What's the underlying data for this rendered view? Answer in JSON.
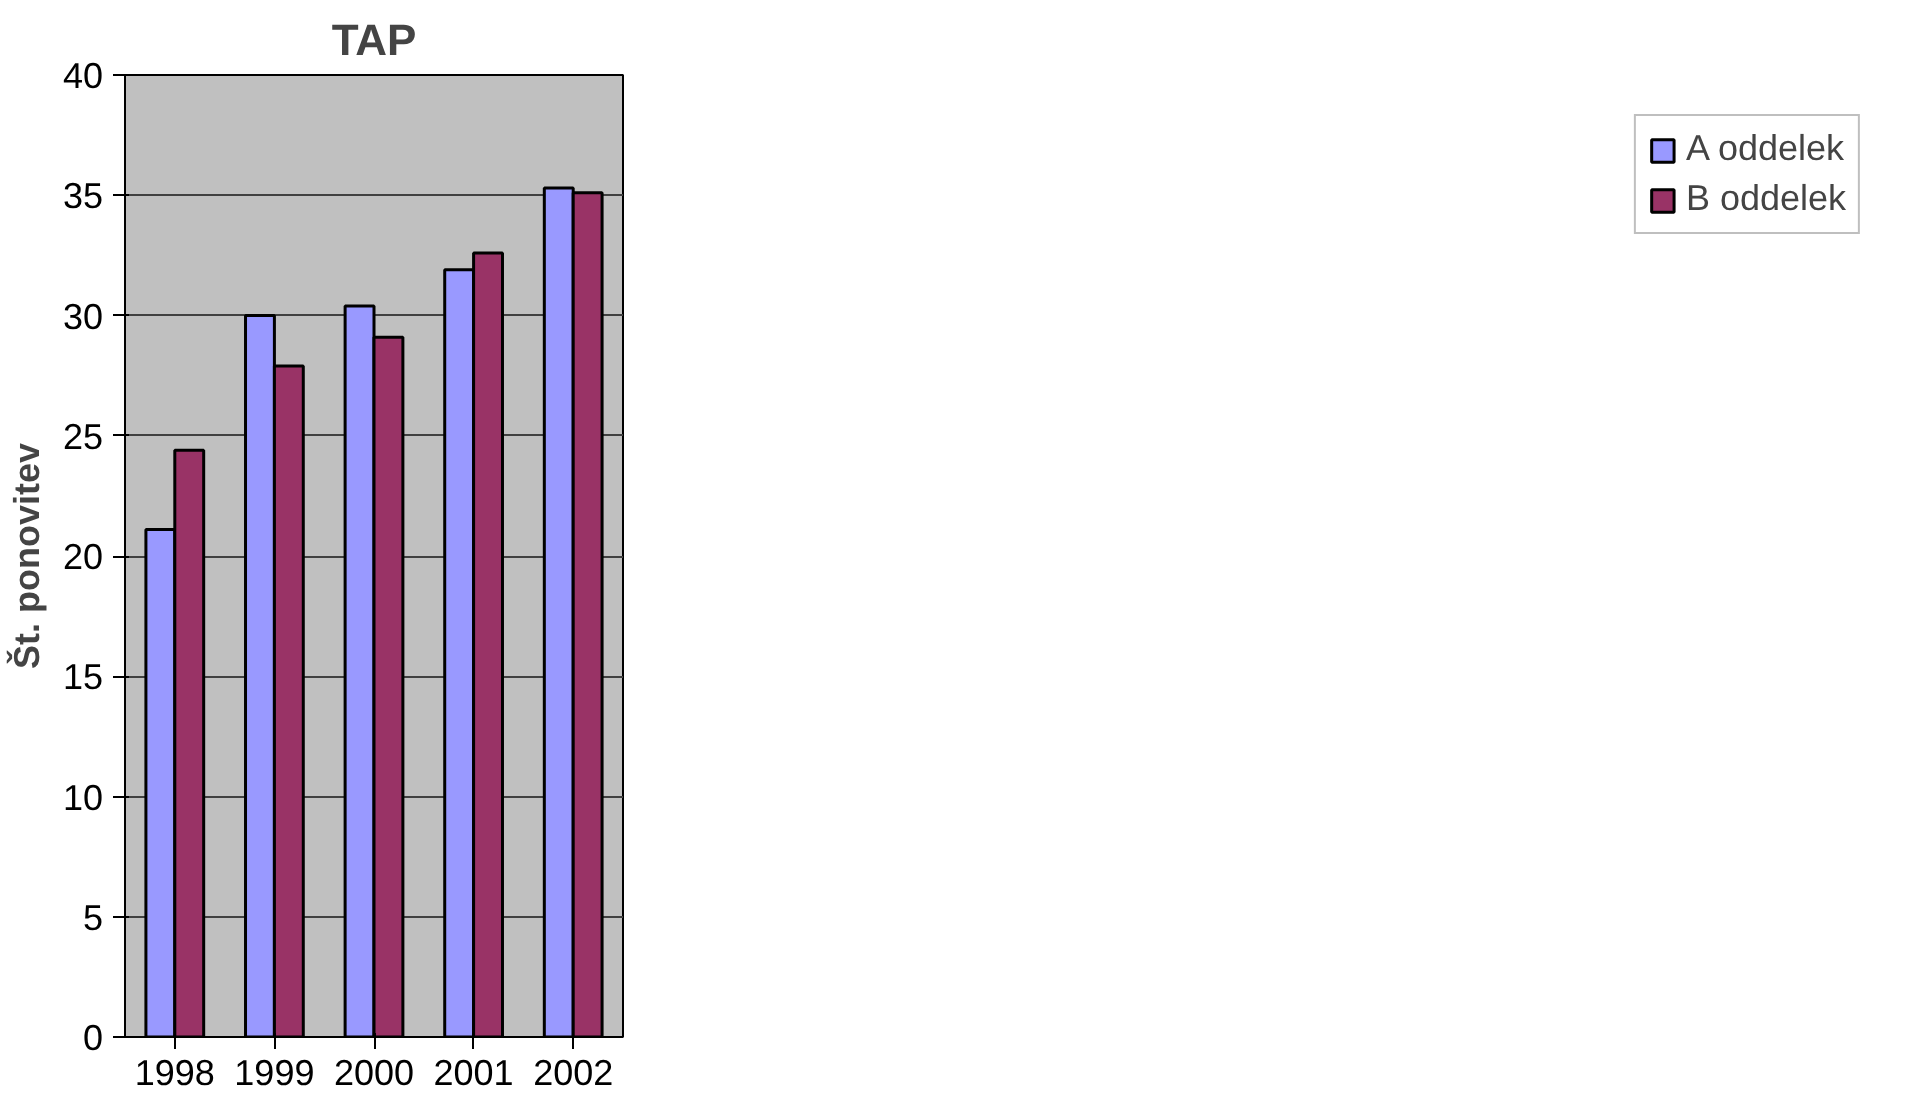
{
  "chart_data": {
    "type": "bar",
    "title": "TAP",
    "ylabel": "Št. ponovitev",
    "categories": [
      "1998",
      "1999",
      "2000",
      "2001",
      "2002"
    ],
    "series": [
      {
        "name": "A oddelek",
        "color": "#9999ff",
        "values": [
          21.1,
          30.0,
          30.4,
          31.9,
          35.3
        ]
      },
      {
        "name": "B oddelek",
        "color": "#993366",
        "values": [
          24.4,
          27.9,
          29.1,
          32.6,
          35.1
        ]
      }
    ],
    "ylim": [
      0,
      40
    ],
    "yticks": [
      0,
      5,
      10,
      15,
      20,
      25,
      30,
      35,
      40
    ],
    "grid": "y",
    "legend": "right"
  }
}
